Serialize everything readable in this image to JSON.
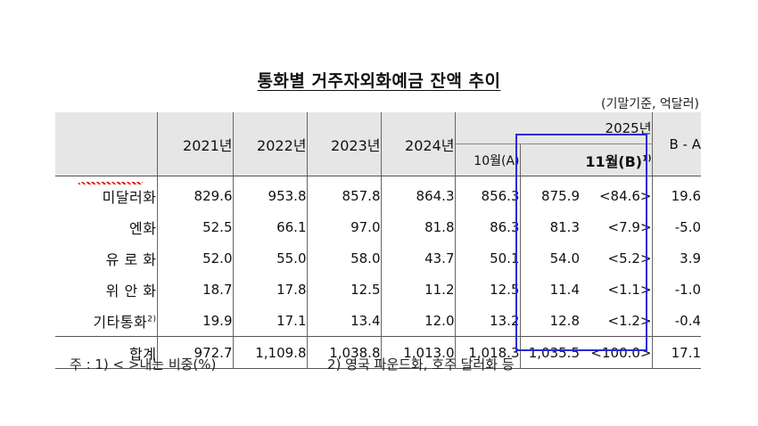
{
  "title": "통화별 거주자외화예금 잔액 추이",
  "unit": "(기말기준, 억달러)",
  "header": {
    "years": [
      "2021년",
      "2022년",
      "2023년",
      "2024년"
    ],
    "group": "2025년",
    "sub_a": "10월(A)",
    "sub_b": "11월(B)",
    "sub_b_note": "1)",
    "diff": "B - A"
  },
  "rows": [
    {
      "label": "미달러화",
      "note": "",
      "vals": [
        "829.6",
        "953.8",
        "857.8",
        "864.3",
        "856.3"
      ],
      "b": "875.9",
      "pct": "<84.6>",
      "diff": "19.6"
    },
    {
      "label": "엔 화",
      "note": "",
      "vals": [
        "52.5",
        "66.1",
        "97.0",
        "81.8",
        "86.3"
      ],
      "b": "81.3",
      "pct": "<7.9>",
      "diff": "-5.0"
    },
    {
      "label": "유 로 화",
      "note": "",
      "vals": [
        "52.0",
        "55.0",
        "58.0",
        "43.7",
        "50.1"
      ],
      "b": "54.0",
      "pct": "<5.2>",
      "diff": "3.9"
    },
    {
      "label": "위 안 화",
      "note": "",
      "vals": [
        "18.7",
        "17.8",
        "12.5",
        "11.2",
        "12.5"
      ],
      "b": "11.4",
      "pct": "<1.1>",
      "diff": "-1.0"
    },
    {
      "label": "기타통화",
      "note": "2)",
      "vals": [
        "19.9",
        "17.1",
        "13.4",
        "12.0",
        "13.2"
      ],
      "b": "12.8",
      "pct": "<1.2>",
      "diff": "-0.4"
    }
  ],
  "total": {
    "label": "합 계",
    "vals": [
      "972.7",
      "1,109.8",
      "1,038.8",
      "1,013.0",
      "1,018.3"
    ],
    "b": "1,035.5",
    "pct": "<100.0>",
    "diff": "17.1"
  },
  "notes": {
    "note1": "주 : 1) <    >내는 비중(%)",
    "note2": "2) 영국 파운드화, 호주 달러화 등"
  },
  "colors": {
    "header_bg": "#e6e6e6",
    "highlight": "#2a2ad8"
  }
}
